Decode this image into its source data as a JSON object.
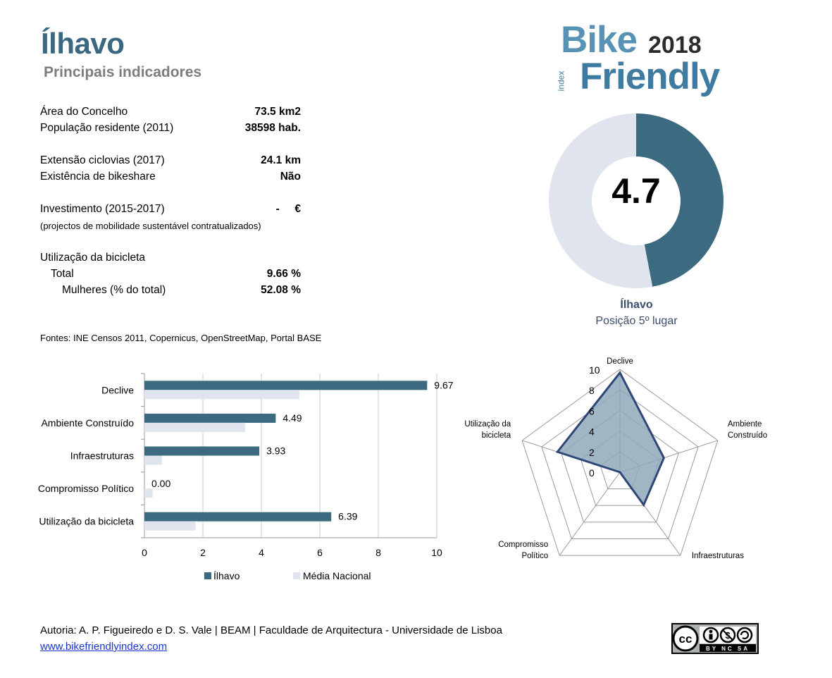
{
  "header": {
    "title": "Ílhavo",
    "subtitle": "Principais indicadores"
  },
  "logo": {
    "bike": "Bike",
    "year": "2018",
    "friendly": "Friendly",
    "index": "index"
  },
  "indicators": [
    {
      "label": "Área do Concelho",
      "value": "73.5 km2"
    },
    {
      "label": "População residente (2011)",
      "value": "38598 hab."
    },
    {
      "label": "Extensão ciclovias (2017)",
      "value": "24.1 km"
    },
    {
      "label": "Existência de bikeshare",
      "value": "Não"
    },
    {
      "label": "Investimento (2015-2017)",
      "value": "-     €"
    },
    {
      "label": "(projectos de mobilidade sustentável contratualizados)",
      "value": ""
    },
    {
      "label": "Utilização da bicicleta",
      "value": ""
    },
    {
      "label": "Total",
      "value": "9.66 %"
    },
    {
      "label": "Mulheres (% do total)",
      "value": "52.08 %"
    }
  ],
  "sources": "Fontes: INE Censos 2011, Copernicus, OpenStreetMap,  Portal BASE",
  "donut": {
    "score": "4.7",
    "score_value": 4.7,
    "max": 10,
    "name": "Ílhavo",
    "position": "Posição 5º lugar",
    "colors": {
      "filled": "#3c6a80",
      "rest": "#dfe4ef"
    }
  },
  "chart_data": [
    {
      "type": "bar",
      "orientation": "horizontal",
      "categories": [
        "Declive",
        "Ambiente Construído",
        "Infraestruturas",
        "Compromisso Político",
        "Utilização da bicicleta"
      ],
      "series": [
        {
          "name": "Ílhavo",
          "values": [
            9.67,
            4.49,
            3.93,
            0.0,
            6.39
          ],
          "labels": [
            "9.67",
            "4.49",
            "3.93",
            "0.00",
            "6.39"
          ],
          "color": "#3c6a80"
        },
        {
          "name": "Média Nacional",
          "values": [
            5.3,
            3.45,
            0.6,
            0.28,
            1.75
          ],
          "color": "#dfe4ef"
        }
      ],
      "xlim": [
        0,
        10
      ],
      "xticks": [
        "0",
        "2",
        "4",
        "6",
        "8",
        "10"
      ],
      "grid": true,
      "legend": "bottom"
    },
    {
      "type": "radar",
      "axes": [
        "Declive",
        "Ambiente Construído",
        "Infraestruturas",
        "Compromisso Político",
        "Utilização da bicicleta"
      ],
      "axis_labels": [
        [
          "Declive"
        ],
        [
          "Ambiente",
          "Construído"
        ],
        [
          "Infraestruturas"
        ],
        [
          "Compromisso",
          "Político"
        ],
        [
          "Utilização da",
          "bicicleta"
        ]
      ],
      "values": [
        9.67,
        4.49,
        3.93,
        0.0,
        6.39
      ],
      "rlim": [
        0,
        10
      ],
      "rticks": [
        "0",
        "2",
        "4",
        "6",
        "8",
        "10"
      ],
      "colors": {
        "fill": "#8fa9bb",
        "line": "#2f4778"
      }
    }
  ],
  "footer": {
    "authors": "Autoria: A. P. Figueiredo e D. S. Vale | BEAM | Faculdade de Arquitectura - Universidade de Lisboa",
    "link": "www.bikefriendlyindex.com",
    "license": "BY NC SA"
  }
}
